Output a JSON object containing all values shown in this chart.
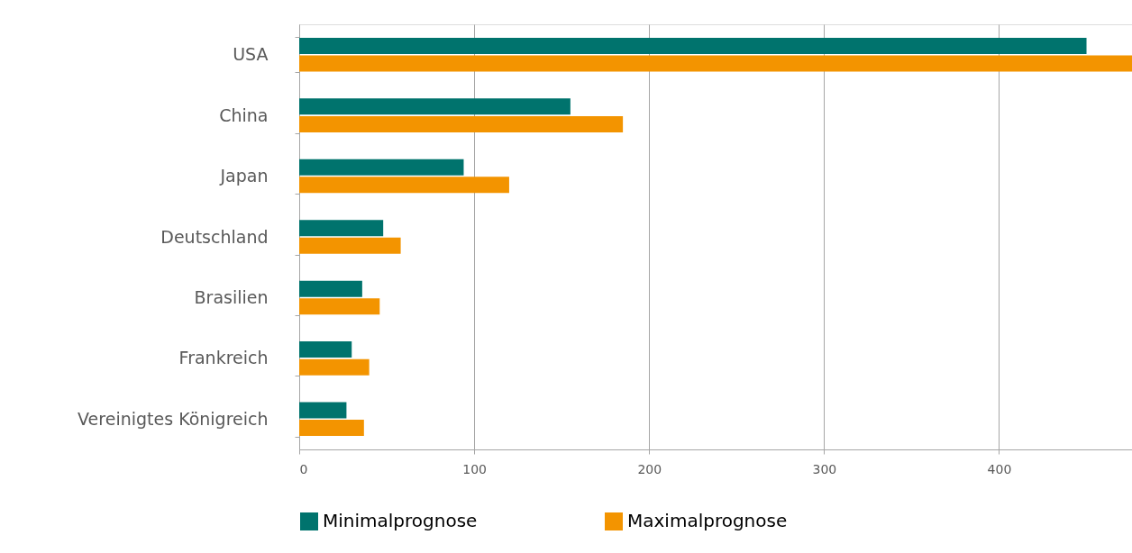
{
  "chart_data": {
    "type": "bar",
    "orientation": "horizontal",
    "categories": [
      "USA",
      "China",
      "Japan",
      "Deutschland",
      "Brasilien",
      "Frankreich",
      "Vereinigtes Königreich"
    ],
    "series": [
      {
        "name": "Minimalprognose",
        "color": "#00736d",
        "values": [
          450,
          155,
          94,
          48,
          36,
          30,
          27
        ]
      },
      {
        "name": "Maximalprognose",
        "color": "#f39400",
        "values": [
          476,
          185,
          120,
          58,
          46,
          40,
          37
        ]
      }
    ],
    "xlim": [
      0,
      476
    ],
    "xticks": [
      0,
      100,
      200,
      300,
      400
    ],
    "grid": "x",
    "legend": "bottom"
  }
}
